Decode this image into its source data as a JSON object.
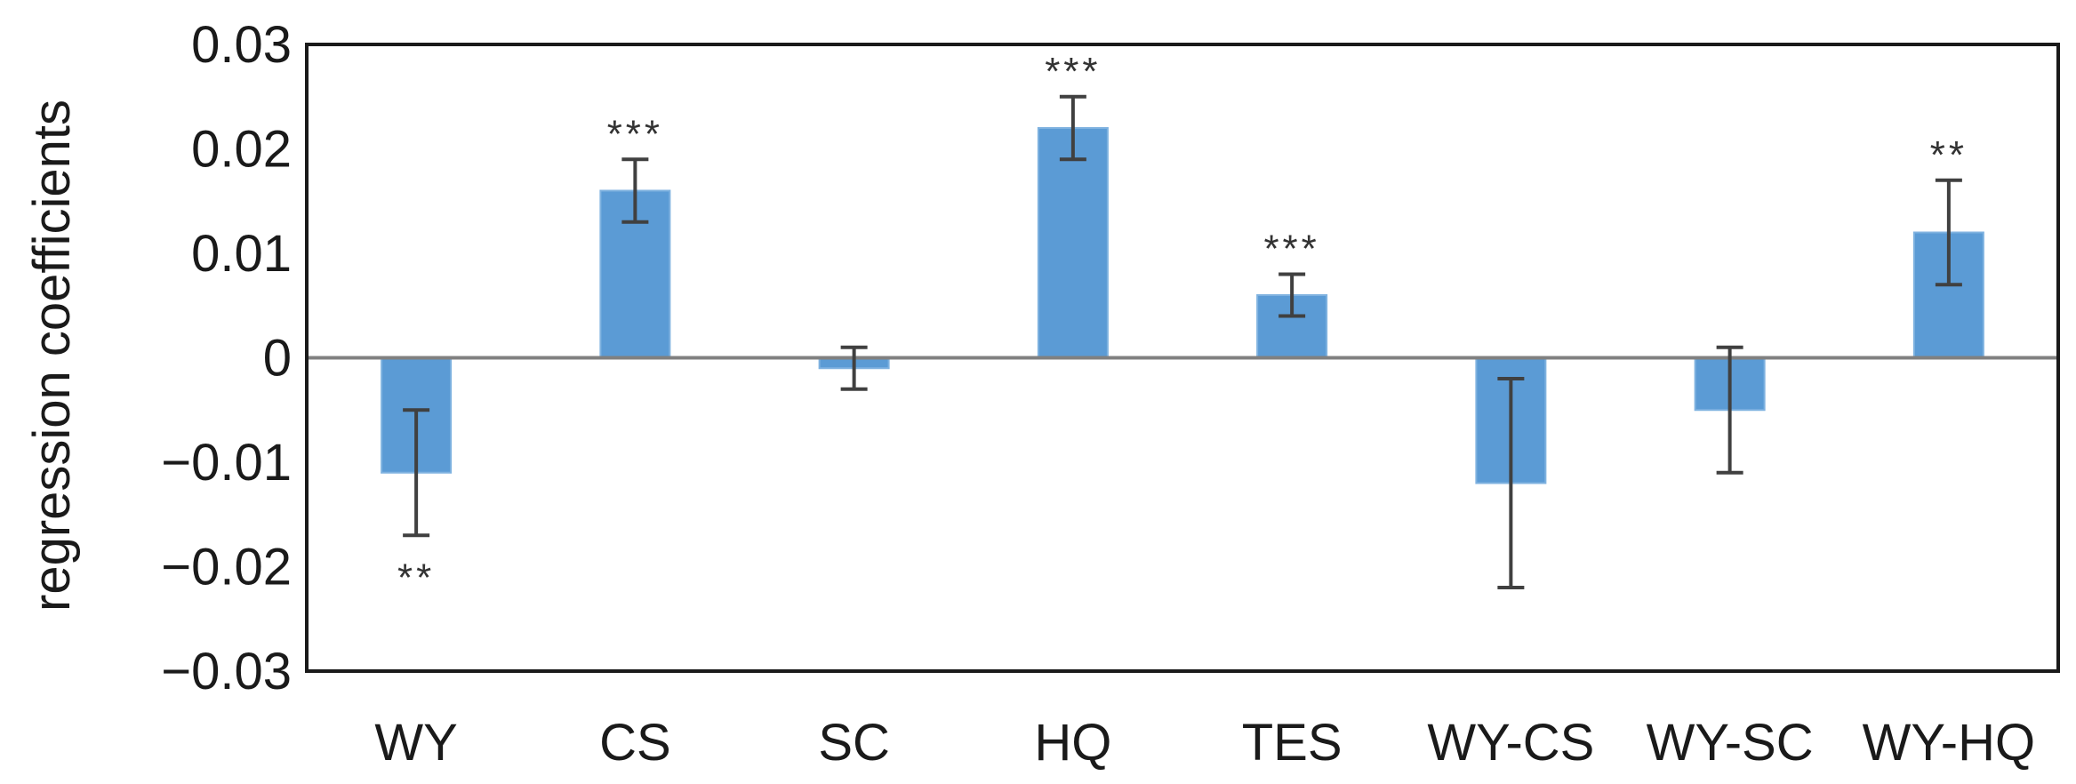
{
  "chart_data": {
    "type": "bar",
    "title": "",
    "xlabel": "",
    "ylabel": "regression coefficients",
    "ylim": [
      -0.03,
      0.03
    ],
    "yticks": [
      0.03,
      0.02,
      0.01,
      0,
      -0.01,
      -0.02,
      -0.03
    ],
    "ytick_labels": [
      "0.03",
      "0.02",
      "0.01",
      "0",
      "−0.01",
      "−0.02",
      "−0.03"
    ],
    "categories": [
      "WY",
      "CS",
      "SC",
      "HQ",
      "TES",
      "WY-CS",
      "WY-SC",
      "WY-HQ"
    ],
    "values": [
      -0.011,
      0.016,
      -0.001,
      0.022,
      0.006,
      -0.012,
      -0.005,
      0.012
    ],
    "error_low": [
      -0.017,
      0.013,
      -0.003,
      0.019,
      0.004,
      -0.022,
      -0.011,
      0.007
    ],
    "error_high": [
      -0.005,
      0.019,
      0.001,
      0.025,
      0.008,
      -0.002,
      0.001,
      0.017
    ],
    "significance": [
      "**",
      "***",
      "",
      "***",
      "***",
      "",
      "",
      "**"
    ],
    "grid": false,
    "legend": "none",
    "bar_color": "#5b9bd5",
    "errorbar_color": "#404040",
    "zero_line_color": "#808080"
  }
}
